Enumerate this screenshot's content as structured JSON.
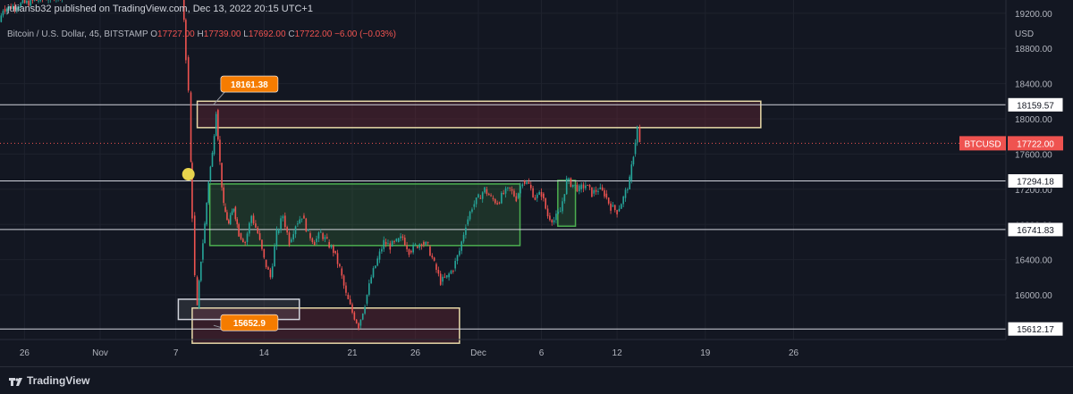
{
  "header": {
    "published": "juliansb32 published on TradingView.com, Dec 13, 2022 20:15 UTC+1",
    "symbol": "Bitcoin / U.S. Dollar, 45, BITSTAMP",
    "o_label": "O",
    "o_value": "17727.00",
    "h_label": "H",
    "h_value": "17739.00",
    "l_label": "L",
    "l_value": "17692.00",
    "c_label": "C",
    "c_value": "17722.00",
    "change": "−6.00 (−0.03%)"
  },
  "chart_data": {
    "type": "candlestick",
    "currency": "USD",
    "y_ticks": [
      16000,
      16400,
      16800,
      17200,
      17600,
      18000,
      18400,
      18800,
      19200
    ],
    "y_tick_labels": [
      "16000.00",
      "16400.00",
      "16800.00",
      "17200.00",
      "17600.00",
      "18000.00",
      "18400.00",
      "18800.00",
      "19200.00"
    ],
    "ylim": [
      15450,
      19700
    ],
    "x_ticks": [
      "26",
      "Nov",
      "7",
      "14",
      "21",
      "26",
      "Dec",
      "6",
      "12",
      "19",
      "26"
    ],
    "x_tick_days": [
      -5,
      1,
      7,
      14,
      21,
      26,
      31,
      36,
      42,
      49,
      56
    ],
    "level_lines": [
      {
        "price": 18159.57,
        "label": "18159.57"
      },
      {
        "price": 17294.18,
        "label": "17294.18"
      },
      {
        "price": 16741.83,
        "label": "16741.83"
      },
      {
        "price": 15612.17,
        "label": "15612.17"
      }
    ],
    "current_price": {
      "symbol": "BTCUSD",
      "price": 17722.0,
      "label": "17722.00"
    },
    "callouts": [
      {
        "text": "18161.38",
        "price": 18161.38,
        "day": 10
      },
      {
        "text": "15652.9",
        "price": 15652.9,
        "day": 10
      }
    ],
    "zones": [
      {
        "kind": "supply",
        "day_from": 8.7,
        "day_to": 53.4,
        "price_from": 17900,
        "price_to": 18200
      },
      {
        "kind": "demand",
        "day_from": 9.7,
        "day_to": 34.3,
        "price_from": 16560,
        "price_to": 17260
      },
      {
        "kind": "demand",
        "day_from": 37.3,
        "day_to": 38.7,
        "price_from": 16780,
        "price_to": 17300
      },
      {
        "kind": "support",
        "day_from": 8.3,
        "day_to": 29.5,
        "price_from": 15450,
        "price_to": 15850
      },
      {
        "kind": "box",
        "day_from": 7.2,
        "day_to": 16.8,
        "price_from": 15720,
        "price_to": 15950
      }
    ],
    "close_path": [
      [
        -7,
        19100
      ],
      [
        -6.7,
        19250
      ],
      [
        5.8,
        19700
      ],
      [
        7.1,
        19650
      ],
      [
        7.5,
        19580
      ],
      [
        7.8,
        18700
      ],
      [
        8.0,
        18300
      ],
      [
        8.2,
        17500
      ],
      [
        8.3,
        16900
      ],
      [
        8.5,
        16200
      ],
      [
        8.7,
        15850
      ],
      [
        9.0,
        16400
      ],
      [
        9.3,
        16800
      ],
      [
        9.6,
        17300
      ],
      [
        9.9,
        17600
      ],
      [
        10.2,
        18100
      ],
      [
        10.5,
        17500
      ],
      [
        10.8,
        17000
      ],
      [
        11.2,
        16800
      ],
      [
        11.6,
        17000
      ],
      [
        12.0,
        16700
      ],
      [
        12.5,
        16600
      ],
      [
        13.0,
        16900
      ],
      [
        13.5,
        16700
      ],
      [
        14.0,
        16400
      ],
      [
        14.5,
        16200
      ],
      [
        15.0,
        16700
      ],
      [
        15.5,
        16900
      ],
      [
        16.0,
        16600
      ],
      [
        16.5,
        16800
      ],
      [
        17.0,
        16900
      ],
      [
        17.5,
        16700
      ],
      [
        18.0,
        16600
      ],
      [
        18.5,
        16700
      ],
      [
        19.0,
        16600
      ],
      [
        19.5,
        16500
      ],
      [
        20.0,
        16300
      ],
      [
        20.5,
        16000
      ],
      [
        21.0,
        15800
      ],
      [
        21.5,
        15650
      ],
      [
        22.0,
        15900
      ],
      [
        22.5,
        16200
      ],
      [
        23.0,
        16400
      ],
      [
        23.5,
        16600
      ],
      [
        24.0,
        16550
      ],
      [
        24.5,
        16600
      ],
      [
        25.0,
        16650
      ],
      [
        25.5,
        16500
      ],
      [
        26.0,
        16550
      ],
      [
        26.5,
        16600
      ],
      [
        27.0,
        16550
      ],
      [
        27.5,
        16350
      ],
      [
        28.0,
        16150
      ],
      [
        28.5,
        16200
      ],
      [
        29.0,
        16300
      ],
      [
        29.5,
        16500
      ],
      [
        30.0,
        16800
      ],
      [
        30.5,
        17000
      ],
      [
        31.0,
        17100
      ],
      [
        31.5,
        17200
      ],
      [
        32.0,
        17100
      ],
      [
        32.5,
        17050
      ],
      [
        33.0,
        17150
      ],
      [
        33.5,
        17200
      ],
      [
        34.0,
        17100
      ],
      [
        34.5,
        17300
      ],
      [
        35.0,
        17250
      ],
      [
        35.5,
        17100
      ],
      [
        36.0,
        17150
      ],
      [
        36.5,
        16900
      ],
      [
        37.0,
        16850
      ],
      [
        37.5,
        16950
      ],
      [
        38.0,
        17300
      ],
      [
        38.5,
        17250
      ],
      [
        39.0,
        17200
      ],
      [
        39.5,
        17250
      ],
      [
        40.0,
        17150
      ],
      [
        40.5,
        17200
      ],
      [
        41.0,
        17150
      ],
      [
        41.5,
        17000
      ],
      [
        42.0,
        16950
      ],
      [
        42.5,
        17100
      ],
      [
        43.0,
        17300
      ],
      [
        43.3,
        17600
      ],
      [
        43.6,
        17900
      ],
      [
        43.8,
        17722
      ]
    ]
  },
  "footer": {
    "brand": "TradingView"
  }
}
